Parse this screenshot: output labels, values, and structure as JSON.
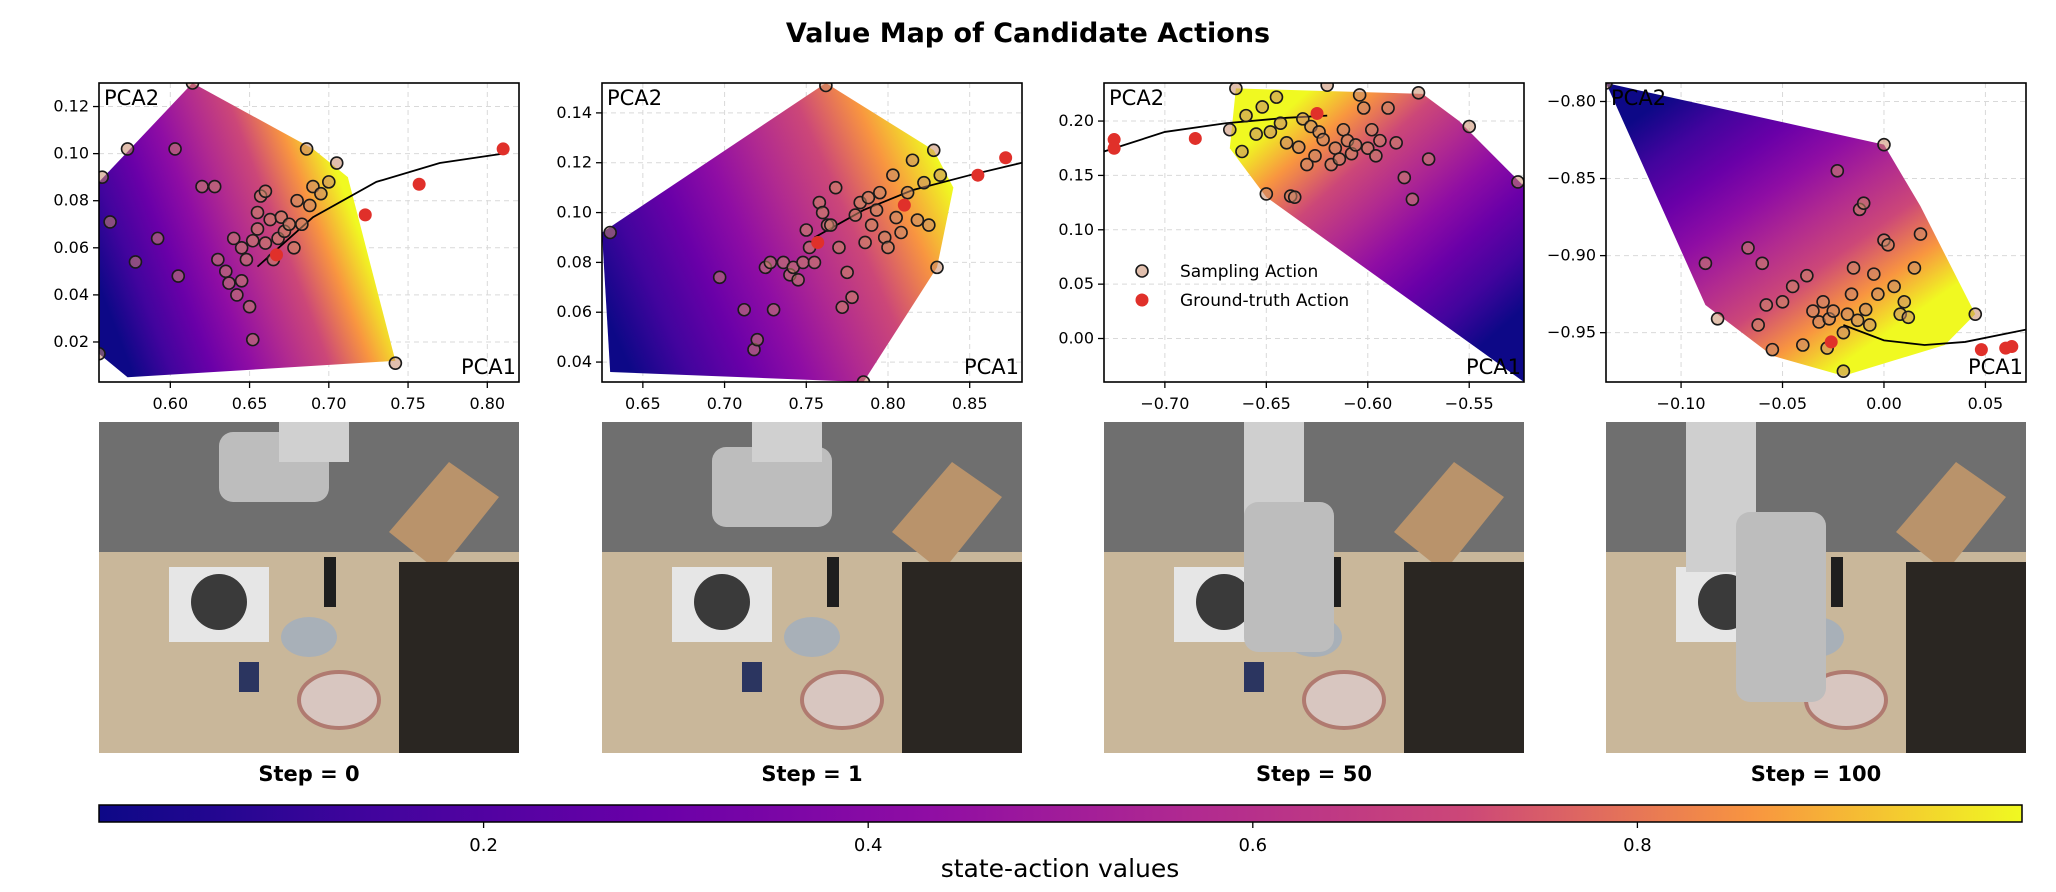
{
  "figure": {
    "title": "Value Map of Candidate Actions"
  },
  "colorbar": {
    "label": "state-action values",
    "ticks": [
      "0.2",
      "0.4",
      "0.6",
      "0.8"
    ],
    "range": [
      0.0,
      1.0
    ]
  },
  "legend": {
    "sampling": "Sampling Action",
    "gt": "Ground-truth Action"
  },
  "colors": {
    "sampling_face": "#c98a6a",
    "gt": "#e0302a",
    "low": "#0d0887",
    "high": "#f0f921"
  },
  "chart_data": [
    {
      "type": "scatter",
      "title": "Step = 0",
      "xlabel": "PCA1",
      "ylabel": "PCA2",
      "xlim": [
        0.555,
        0.82
      ],
      "ylim": [
        0.003,
        0.13
      ],
      "xticks": [
        0.6,
        0.65,
        0.7,
        0.75,
        0.8
      ],
      "xtick_labels": [
        "0.60",
        "0.65",
        "0.70",
        "0.75",
        "0.80"
      ],
      "yticks": [
        0.02,
        0.04,
        0.06,
        0.08,
        0.1,
        0.12
      ],
      "ytick_labels": [
        "0.02",
        "0.04",
        "0.06",
        "0.08",
        "0.10",
        "0.12"
      ],
      "hull": [
        [
          0.555,
          0.088
        ],
        [
          0.614,
          0.13
        ],
        [
          0.69,
          0.102
        ],
        [
          0.712,
          0.09
        ],
        [
          0.742,
          0.012
        ],
        [
          0.573,
          0.005
        ],
        [
          0.555,
          0.015
        ]
      ],
      "gradient": {
        "start": [
          0.56,
          0.035
        ],
        "end": [
          0.715,
          0.075
        ]
      },
      "curve": [
        [
          0.655,
          0.052
        ],
        [
          0.69,
          0.073
        ],
        [
          0.73,
          0.088
        ],
        [
          0.77,
          0.096
        ],
        [
          0.81,
          0.1
        ]
      ],
      "ground_truth": [
        [
          0.667,
          0.057
        ],
        [
          0.723,
          0.074
        ],
        [
          0.757,
          0.087
        ],
        [
          0.81,
          0.102
        ]
      ],
      "sampling": [
        [
          0.614,
          0.13
        ],
        [
          0.686,
          0.102
        ],
        [
          0.705,
          0.096
        ],
        [
          0.573,
          0.102
        ],
        [
          0.557,
          0.09
        ],
        [
          0.562,
          0.071
        ],
        [
          0.578,
          0.054
        ],
        [
          0.592,
          0.064
        ],
        [
          0.605,
          0.048
        ],
        [
          0.603,
          0.102
        ],
        [
          0.62,
          0.086
        ],
        [
          0.628,
          0.086
        ],
        [
          0.63,
          0.055
        ],
        [
          0.635,
          0.05
        ],
        [
          0.637,
          0.045
        ],
        [
          0.64,
          0.064
        ],
        [
          0.642,
          0.04
        ],
        [
          0.645,
          0.046
        ],
        [
          0.645,
          0.06
        ],
        [
          0.648,
          0.055
        ],
        [
          0.65,
          0.035
        ],
        [
          0.652,
          0.063
        ],
        [
          0.655,
          0.068
        ],
        [
          0.655,
          0.075
        ],
        [
          0.657,
          0.082
        ],
        [
          0.66,
          0.084
        ],
        [
          0.66,
          0.062
        ],
        [
          0.663,
          0.072
        ],
        [
          0.665,
          0.055
        ],
        [
          0.668,
          0.064
        ],
        [
          0.67,
          0.073
        ],
        [
          0.672,
          0.067
        ],
        [
          0.675,
          0.07
        ],
        [
          0.678,
          0.06
        ],
        [
          0.68,
          0.08
        ],
        [
          0.683,
          0.07
        ],
        [
          0.688,
          0.078
        ],
        [
          0.69,
          0.086
        ],
        [
          0.695,
          0.083
        ],
        [
          0.7,
          0.088
        ],
        [
          0.652,
          0.021
        ],
        [
          0.742,
          0.011
        ],
        [
          0.555,
          0.015
        ]
      ]
    },
    {
      "type": "scatter",
      "title": "Step = 1",
      "xlabel": "PCA1",
      "ylabel": "PCA2",
      "xlim": [
        0.625,
        0.882
      ],
      "ylim": [
        0.032,
        0.152
      ],
      "xticks": [
        0.65,
        0.7,
        0.75,
        0.8,
        0.85
      ],
      "xtick_labels": [
        "0.65",
        "0.70",
        "0.75",
        "0.80",
        "0.85"
      ],
      "yticks": [
        0.04,
        0.06,
        0.08,
        0.1,
        0.12,
        0.14
      ],
      "ytick_labels": [
        "0.04",
        "0.06",
        "0.08",
        "0.10",
        "0.12",
        "0.14"
      ],
      "hull": [
        [
          0.625,
          0.092
        ],
        [
          0.762,
          0.152
        ],
        [
          0.828,
          0.125
        ],
        [
          0.84,
          0.11
        ],
        [
          0.83,
          0.078
        ],
        [
          0.785,
          0.032
        ],
        [
          0.63,
          0.036
        ]
      ],
      "gradient": {
        "start": [
          0.63,
          0.055
        ],
        "end": [
          0.835,
          0.115
        ]
      },
      "curve": [
        [
          0.755,
          0.09
        ],
        [
          0.785,
          0.101
        ],
        [
          0.815,
          0.109
        ],
        [
          0.85,
          0.115
        ],
        [
          0.882,
          0.12
        ]
      ],
      "ground_truth": [
        [
          0.757,
          0.088
        ],
        [
          0.81,
          0.103
        ],
        [
          0.855,
          0.115
        ],
        [
          0.872,
          0.122
        ]
      ],
      "sampling": [
        [
          0.762,
          0.151
        ],
        [
          0.828,
          0.125
        ],
        [
          0.832,
          0.115
        ],
        [
          0.83,
          0.078
        ],
        [
          0.785,
          0.032
        ],
        [
          0.63,
          0.092
        ],
        [
          0.697,
          0.074
        ],
        [
          0.712,
          0.061
        ],
        [
          0.718,
          0.045
        ],
        [
          0.72,
          0.049
        ],
        [
          0.725,
          0.078
        ],
        [
          0.728,
          0.08
        ],
        [
          0.73,
          0.061
        ],
        [
          0.736,
          0.08
        ],
        [
          0.74,
          0.075
        ],
        [
          0.742,
          0.078
        ],
        [
          0.745,
          0.073
        ],
        [
          0.748,
          0.08
        ],
        [
          0.75,
          0.093
        ],
        [
          0.752,
          0.086
        ],
        [
          0.755,
          0.08
        ],
        [
          0.758,
          0.104
        ],
        [
          0.76,
          0.1
        ],
        [
          0.763,
          0.095
        ],
        [
          0.765,
          0.095
        ],
        [
          0.768,
          0.11
        ],
        [
          0.77,
          0.086
        ],
        [
          0.772,
          0.062
        ],
        [
          0.775,
          0.076
        ],
        [
          0.778,
          0.066
        ],
        [
          0.78,
          0.099
        ],
        [
          0.783,
          0.104
        ],
        [
          0.786,
          0.088
        ],
        [
          0.788,
          0.106
        ],
        [
          0.79,
          0.095
        ],
        [
          0.793,
          0.101
        ],
        [
          0.795,
          0.108
        ],
        [
          0.798,
          0.09
        ],
        [
          0.8,
          0.086
        ],
        [
          0.803,
          0.115
        ],
        [
          0.805,
          0.098
        ],
        [
          0.808,
          0.092
        ],
        [
          0.812,
          0.108
        ],
        [
          0.815,
          0.121
        ],
        [
          0.818,
          0.097
        ],
        [
          0.822,
          0.112
        ],
        [
          0.825,
          0.095
        ]
      ]
    },
    {
      "type": "scatter",
      "title": "Step = 50",
      "xlabel": "PCA1",
      "ylabel": "PCA2",
      "xlim": [
        -0.73,
        -0.523
      ],
      "ylim": [
        -0.04,
        0.235
      ],
      "xticks": [
        -0.7,
        -0.65,
        -0.6,
        -0.55
      ],
      "xtick_labels": [
        "−0.70",
        "−0.65",
        "−0.60",
        "−0.55"
      ],
      "yticks": [
        0.0,
        0.05,
        0.1,
        0.15,
        0.2
      ],
      "ytick_labels": [
        "0.00",
        "0.05",
        "0.10",
        "0.15",
        "0.20"
      ],
      "hull": [
        [
          -0.665,
          0.23
        ],
        [
          -0.573,
          0.225
        ],
        [
          -0.555,
          0.2
        ],
        [
          -0.523,
          0.14
        ],
        [
          -0.523,
          -0.04
        ],
        [
          -0.65,
          0.13
        ],
        [
          -0.668,
          0.175
        ]
      ],
      "gradient": {
        "start": [
          -0.54,
          0.0
        ],
        "end": [
          -0.64,
          0.21
        ]
      },
      "curve": [
        [
          -0.73,
          0.172
        ],
        [
          -0.7,
          0.19
        ],
        [
          -0.67,
          0.198
        ],
        [
          -0.64,
          0.203
        ],
        [
          -0.62,
          0.205
        ]
      ],
      "ground_truth": [
        [
          -0.725,
          0.183
        ],
        [
          -0.725,
          0.175
        ],
        [
          -0.685,
          0.184
        ],
        [
          -0.625,
          0.207
        ]
      ],
      "sampling": [
        [
          -0.665,
          0.23
        ],
        [
          -0.668,
          0.192
        ],
        [
          -0.662,
          0.172
        ],
        [
          -0.66,
          0.205
        ],
        [
          -0.655,
          0.188
        ],
        [
          -0.652,
          0.213
        ],
        [
          -0.65,
          0.133
        ],
        [
          -0.648,
          0.19
        ],
        [
          -0.645,
          0.222
        ],
        [
          -0.643,
          0.198
        ],
        [
          -0.64,
          0.18
        ],
        [
          -0.638,
          0.131
        ],
        [
          -0.636,
          0.13
        ],
        [
          -0.634,
          0.176
        ],
        [
          -0.632,
          0.202
        ],
        [
          -0.63,
          0.16
        ],
        [
          -0.628,
          0.195
        ],
        [
          -0.626,
          0.168
        ],
        [
          -0.624,
          0.19
        ],
        [
          -0.622,
          0.183
        ],
        [
          -0.62,
          0.233
        ],
        [
          -0.618,
          0.16
        ],
        [
          -0.616,
          0.175
        ],
        [
          -0.614,
          0.165
        ],
        [
          -0.612,
          0.192
        ],
        [
          -0.61,
          0.182
        ],
        [
          -0.608,
          0.17
        ],
        [
          -0.606,
          0.178
        ],
        [
          -0.604,
          0.224
        ],
        [
          -0.602,
          0.212
        ],
        [
          -0.6,
          0.175
        ],
        [
          -0.598,
          0.192
        ],
        [
          -0.596,
          0.168
        ],
        [
          -0.594,
          0.182
        ],
        [
          -0.59,
          0.212
        ],
        [
          -0.586,
          0.18
        ],
        [
          -0.582,
          0.148
        ],
        [
          -0.578,
          0.128
        ],
        [
          -0.575,
          0.226
        ],
        [
          -0.57,
          0.165
        ],
        [
          -0.55,
          0.195
        ],
        [
          -0.526,
          0.144
        ]
      ]
    },
    {
      "type": "scatter",
      "title": "Step = 100",
      "xlabel": "PCA1",
      "ylabel": "PCA2",
      "xlim": [
        -0.137,
        0.07
      ],
      "ylim": [
        -0.982,
        -0.788
      ],
      "xticks": [
        -0.1,
        -0.05,
        0.0,
        0.05
      ],
      "xtick_labels": [
        "−0.10",
        "−0.05",
        "0.00",
        "0.05"
      ],
      "yticks": [
        -0.95,
        -0.9,
        -0.85,
        -0.8
      ],
      "ytick_labels": [
        "−0.95",
        "−0.90",
        "−0.85",
        "−0.80"
      ],
      "hull": [
        [
          -0.137,
          -0.788
        ],
        [
          0.0,
          -0.828
        ],
        [
          0.018,
          -0.868
        ],
        [
          0.045,
          -0.938
        ],
        [
          0.03,
          -0.958
        ],
        [
          -0.02,
          -0.978
        ],
        [
          -0.055,
          -0.965
        ],
        [
          -0.088,
          -0.932
        ]
      ],
      "gradient": {
        "start": [
          -0.11,
          -0.8
        ],
        "end": [
          -0.02,
          -0.97
        ]
      },
      "curve": [
        [
          -0.02,
          -0.945
        ],
        [
          0.0,
          -0.955
        ],
        [
          0.02,
          -0.958
        ],
        [
          0.04,
          -0.956
        ],
        [
          0.07,
          -0.948
        ]
      ],
      "ground_truth": [
        [
          -0.026,
          -0.956
        ],
        [
          0.048,
          -0.961
        ],
        [
          0.06,
          -0.96
        ],
        [
          0.063,
          -0.959
        ]
      ],
      "sampling": [
        [
          -0.137,
          -0.788
        ],
        [
          0.0,
          -0.828
        ],
        [
          -0.088,
          -0.905
        ],
        [
          -0.082,
          -0.941
        ],
        [
          -0.067,
          -0.895
        ],
        [
          -0.062,
          -0.945
        ],
        [
          -0.06,
          -0.905
        ],
        [
          -0.058,
          -0.932
        ],
        [
          -0.055,
          -0.961
        ],
        [
          -0.05,
          -0.93
        ],
        [
          -0.045,
          -0.92
        ],
        [
          -0.04,
          -0.958
        ],
        [
          -0.038,
          -0.913
        ],
        [
          -0.035,
          -0.936
        ],
        [
          -0.032,
          -0.943
        ],
        [
          -0.03,
          -0.93
        ],
        [
          -0.028,
          -0.96
        ],
        [
          -0.027,
          -0.941
        ],
        [
          -0.025,
          -0.936
        ],
        [
          -0.023,
          -0.845
        ],
        [
          -0.02,
          -0.95
        ],
        [
          -0.018,
          -0.938
        ],
        [
          -0.016,
          -0.925
        ],
        [
          -0.015,
          -0.908
        ],
        [
          -0.013,
          -0.942
        ],
        [
          -0.012,
          -0.87
        ],
        [
          -0.01,
          -0.866
        ],
        [
          -0.009,
          -0.935
        ],
        [
          -0.007,
          -0.945
        ],
        [
          -0.005,
          -0.912
        ],
        [
          -0.003,
          -0.925
        ],
        [
          0.0,
          -0.89
        ],
        [
          0.002,
          -0.893
        ],
        [
          0.005,
          -0.92
        ],
        [
          0.008,
          -0.938
        ],
        [
          0.01,
          -0.93
        ],
        [
          0.012,
          -0.94
        ],
        [
          0.015,
          -0.908
        ],
        [
          0.018,
          -0.886
        ],
        [
          -0.02,
          -0.975
        ],
        [
          0.045,
          -0.938
        ]
      ]
    }
  ]
}
